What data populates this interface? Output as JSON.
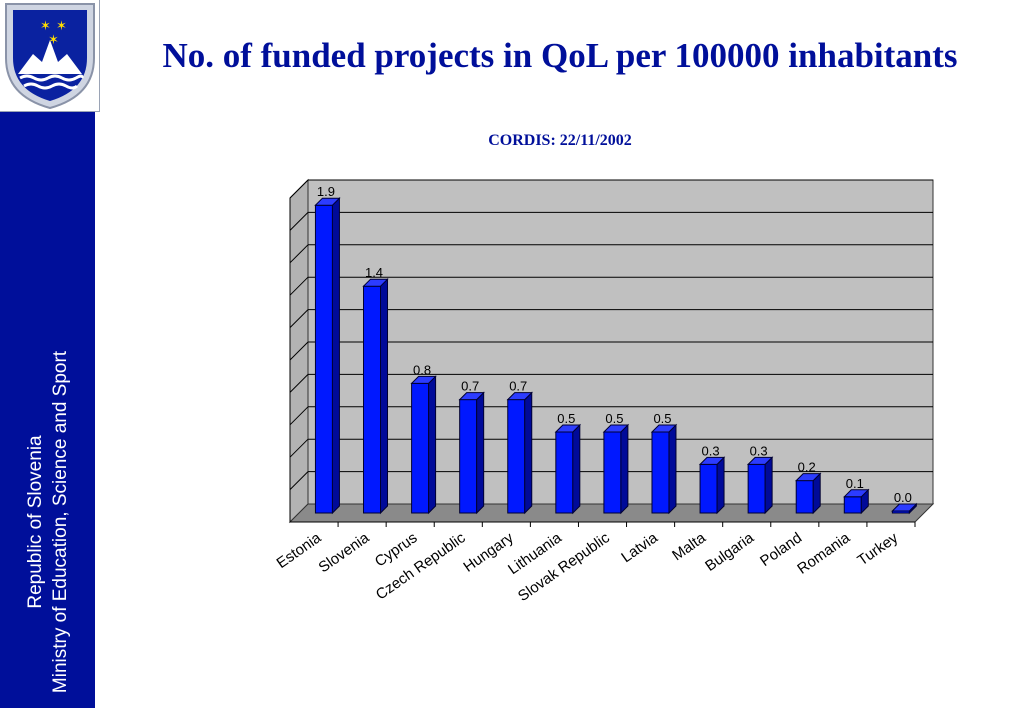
{
  "slide": {
    "title": "No. of funded projects in QoL per 100000 inhabitants",
    "subtitle": "CORDIS: 22/11/2002"
  },
  "sidebar": {
    "line1": "Republic of Slovenia",
    "line2": "Ministry of Education, Science and Sport"
  },
  "colors": {
    "brand": "#000f9a",
    "bar_front": "#0018ff",
    "bar_top": "#2c3cff",
    "bar_side": "#000a99",
    "plot_back": "#c0c0c0",
    "plot_floor": "#8a8a8a"
  },
  "icons": {
    "logo": "slovenia-coat-of-arms-icon"
  },
  "chart_data": {
    "type": "bar",
    "categories": [
      "Estonia",
      "Slovenia",
      "Cyprus",
      "Czech Republic",
      "Hungary",
      "Lithuania",
      "Slovak Republic",
      "Latvia",
      "Malta",
      "Bulgaria",
      "Poland",
      "Romania",
      "Turkey"
    ],
    "values": [
      1.9,
      1.4,
      0.8,
      0.7,
      0.7,
      0.5,
      0.5,
      0.5,
      0.3,
      0.3,
      0.2,
      0.1,
      0.0
    ],
    "value_labels": [
      "1.9",
      "1.4",
      "0.8",
      "0.7",
      "0.7",
      "0.5",
      "0.5",
      "0.5",
      "0.3",
      "0.3",
      "0.2",
      "0.1",
      "0.0"
    ],
    "title": "No. of funded projects in QoL per 100000 inhabitants",
    "subtitle": "CORDIS: 22/11/2002",
    "xlabel": "",
    "ylabel": "",
    "ylim": [
      0,
      2.0
    ],
    "grid": true,
    "legend": "none",
    "style": "3d-column"
  }
}
